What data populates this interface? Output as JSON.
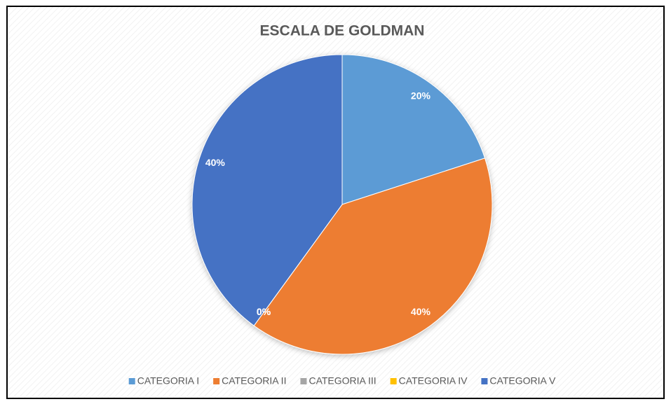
{
  "chart_data": {
    "type": "pie",
    "title": "ESCALA DE GOLDMAN",
    "categories": [
      "CATEGORIA I",
      "CATEGORIA II",
      "CATEGORIA III",
      "CATEGORIA IV",
      "CATEGORIA V"
    ],
    "values": [
      20,
      40,
      0,
      0,
      40
    ],
    "value_labels": [
      "20%",
      "40%",
      "0%",
      "0%",
      "40%"
    ],
    "colors": [
      "#5b9bd5",
      "#ed7d31",
      "#a5a5a5",
      "#ffc000",
      "#4472c4"
    ],
    "legend": "bottom"
  }
}
